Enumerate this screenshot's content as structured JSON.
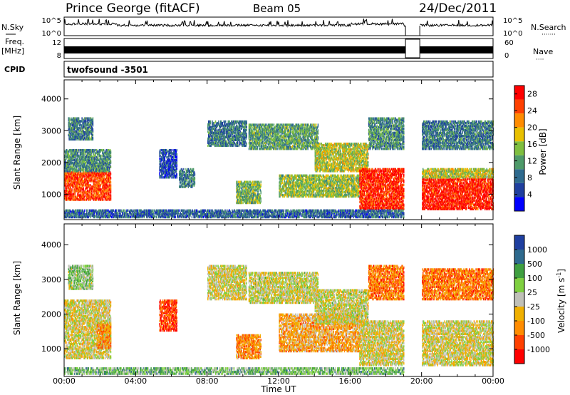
{
  "header": {
    "station": "Prince George (fitACF)",
    "beam": "Beam 05",
    "date": "24/Dec/2011"
  },
  "left_labels": {
    "nsky": "N.Sky",
    "freq_line1": "Freq.",
    "freq_line2": "[MHz]",
    "cpid": "CPID"
  },
  "right_labels": {
    "nsearch": "N.Search",
    "nsearch_dots": "·······",
    "nave": "Nave",
    "nave_dots": "····"
  },
  "noise_panel": {
    "ticks_left": [
      "10^5",
      "10^0"
    ],
    "ticks_right": [
      "10^5",
      "10^0"
    ]
  },
  "freq_panel": {
    "ticks_left": [
      "12",
      "8"
    ],
    "ticks_right": [
      "60",
      "0"
    ]
  },
  "cpid_text": "twofsound  -3501",
  "colors": {
    "power": [
      "#0000ff",
      "#1f3f9f",
      "#2e6a8e",
      "#4e9a6a",
      "#7fbf3f",
      "#e8c000",
      "#ff8c00",
      "#ff4000",
      "#ff0000"
    ],
    "velocity": [
      "#ff0000",
      "#ff4000",
      "#ff8c00",
      "#f0b000",
      "#c0c0b8",
      "#7fd040",
      "#3f9f40",
      "#2e6a8e",
      "#1f3fa0"
    ]
  },
  "chart_data": [
    {
      "type": "heatmap",
      "name": "power",
      "xlabel": "",
      "ylabel": "Slant Range [km]",
      "x_ticks": [
        "00:00",
        "04:00",
        "08:00",
        "12:00",
        "16:00",
        "20:00",
        "00:00"
      ],
      "y_ticks": [
        "1000",
        "2000",
        "3000",
        "4000"
      ],
      "ylim": [
        200,
        4600
      ],
      "colorbar": {
        "label": "Power [dB]",
        "ticks": [
          "4",
          "8",
          "12",
          "16",
          "20",
          "24",
          "28"
        ],
        "range": [
          0,
          30
        ]
      },
      "data_gap_hours": [
        19.1,
        19.9
      ],
      "regions": [
        {
          "t": [
            0.0,
            2.6
          ],
          "r": [
            800,
            1700
          ],
          "level": 0.85
        },
        {
          "t": [
            0.0,
            2.6
          ],
          "r": [
            1700,
            2400
          ],
          "level": 0.35
        },
        {
          "t": [
            0.2,
            1.6
          ],
          "r": [
            2700,
            3400
          ],
          "level": 0.3
        },
        {
          "t": [
            5.3,
            6.3
          ],
          "r": [
            1500,
            2400
          ],
          "level": 0.2
        },
        {
          "t": [
            6.4,
            7.3
          ],
          "r": [
            1200,
            1800
          ],
          "level": 0.3
        },
        {
          "t": [
            8.0,
            10.2
          ],
          "r": [
            2500,
            3300
          ],
          "level": 0.3
        },
        {
          "t": [
            9.6,
            11.0
          ],
          "r": [
            700,
            1400
          ],
          "level": 0.45
        },
        {
          "t": [
            10.3,
            14.2
          ],
          "r": [
            2400,
            3200
          ],
          "level": 0.4
        },
        {
          "t": [
            12.0,
            16.5
          ],
          "r": [
            900,
            1600
          ],
          "level": 0.5
        },
        {
          "t": [
            14.0,
            17.0
          ],
          "r": [
            1700,
            2600
          ],
          "level": 0.55
        },
        {
          "t": [
            16.5,
            19.0
          ],
          "r": [
            500,
            1800
          ],
          "level": 0.9
        },
        {
          "t": [
            17.0,
            19.0
          ],
          "r": [
            2400,
            3400
          ],
          "level": 0.35
        },
        {
          "t": [
            20.0,
            24.0
          ],
          "r": [
            500,
            1500
          ],
          "level": 0.92
        },
        {
          "t": [
            20.0,
            24.0
          ],
          "r": [
            1500,
            1800
          ],
          "level": 0.55
        },
        {
          "t": [
            20.0,
            24.0
          ],
          "r": [
            2400,
            3300
          ],
          "level": 0.3
        },
        {
          "t": [
            0.0,
            19.0
          ],
          "r": [
            250,
            500
          ],
          "level": 0.25
        }
      ]
    },
    {
      "type": "heatmap",
      "name": "velocity",
      "xlabel": "Time UT",
      "ylabel": "Slant Range [km]",
      "x_ticks": [
        "00:00",
        "04:00",
        "08:00",
        "12:00",
        "16:00",
        "20:00",
        "00:00"
      ],
      "y_ticks": [
        "1000",
        "2000",
        "3000",
        "4000"
      ],
      "ylim": [
        200,
        4600
      ],
      "colorbar": {
        "label": "Velocity [m s^-1]",
        "ticks": [
          "1000",
          "500",
          "100",
          "25",
          "-25",
          "-100",
          "-500",
          "-1000"
        ]
      },
      "data_gap_hours": [
        19.1,
        19.9
      ],
      "regions": [
        {
          "t": [
            0.0,
            2.6
          ],
          "r": [
            700,
            2400
          ],
          "level": 0.48
        },
        {
          "t": [
            1.8,
            2.6
          ],
          "r": [
            1000,
            1700
          ],
          "level": 0.3
        },
        {
          "t": [
            0.2,
            1.6
          ],
          "r": [
            2700,
            3400
          ],
          "level": 0.6
        },
        {
          "t": [
            5.3,
            6.3
          ],
          "r": [
            1500,
            2400
          ],
          "level": 0.15
        },
        {
          "t": [
            8.0,
            10.2
          ],
          "r": [
            2400,
            3400
          ],
          "level": 0.48
        },
        {
          "t": [
            9.6,
            11.0
          ],
          "r": [
            700,
            1400
          ],
          "level": 0.3
        },
        {
          "t": [
            10.3,
            14.2
          ],
          "r": [
            2300,
            3200
          ],
          "level": 0.5
        },
        {
          "t": [
            12.0,
            16.5
          ],
          "r": [
            900,
            2000
          ],
          "level": 0.35
        },
        {
          "t": [
            14.0,
            17.0
          ],
          "r": [
            1700,
            2700
          ],
          "level": 0.5
        },
        {
          "t": [
            16.5,
            19.0
          ],
          "r": [
            500,
            1800
          ],
          "level": 0.48
        },
        {
          "t": [
            17.0,
            19.0
          ],
          "r": [
            2400,
            3400
          ],
          "level": 0.25
        },
        {
          "t": [
            20.0,
            24.0
          ],
          "r": [
            500,
            1800
          ],
          "level": 0.48
        },
        {
          "t": [
            20.0,
            24.0
          ],
          "r": [
            2400,
            3300
          ],
          "level": 0.25
        },
        {
          "t": [
            0.0,
            19.0
          ],
          "r": [
            250,
            450
          ],
          "level": 0.65
        }
      ]
    }
  ]
}
